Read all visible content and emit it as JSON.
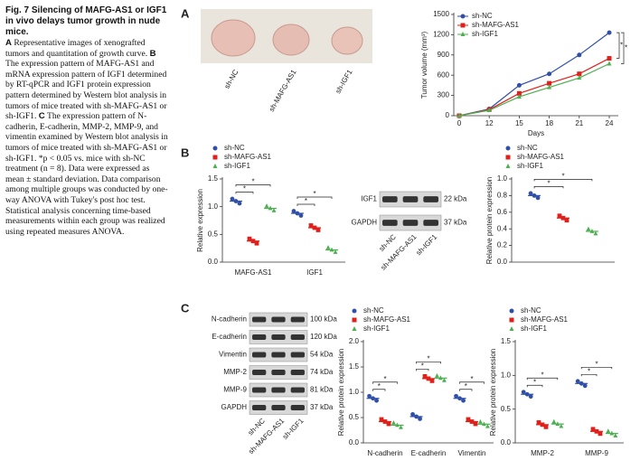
{
  "caption": {
    "title": "Fig. 7 Silencing of MAFG-AS1 or IGF1 in vivo delays tumor growth in nude mice.",
    "sections": [
      {
        "label": "A",
        "text": "Representative images of xenografted tumors and quantitation of growth curve."
      },
      {
        "label": "B",
        "text": "The expression pattern of MAFG-AS1 and mRNA expression pattern of IGF1 determined by RT-qPCR and IGF1 protein expression pattern determined by Western blot analysis in tumors of mice treated with sh-MAFG-AS1 or sh-IGF1."
      },
      {
        "label": "C",
        "text": "The expression pattern of N-cadherin, E-cadherin, MMP-2, MMP-9, and vimentin examined by Western blot analysis in tumors of mice treated with sh-MAFG-AS1 or sh-IGF1. *p < 0.05 vs. mice with sh-NC treatment (n = 8). Data were expressed as mean ± standard deviation. Data comparison among multiple groups was conducted by one-way ANOVA with Tukey's post hoc test. Statistical analysis concerning time-based measurements within each group was realized using repeated measures ANOVA."
      }
    ]
  },
  "panels": [
    "A",
    "B",
    "C"
  ],
  "photo_labels": [
    "sh-NC",
    "sh-MAFG-AS1",
    "sh-IGF1"
  ],
  "significance": "*",
  "blots": [
    {
      "rows": [
        {
          "protein": "IGF1",
          "size": "22 kDa"
        },
        {
          "protein": "GAPDH",
          "size": "37 kDa"
        }
      ],
      "lanes": [
        "sh-NC",
        "sh-MAFG-AS1",
        "sh-IGF1"
      ]
    },
    {
      "rows": [
        {
          "protein": "N-cadherin",
          "size": "100 kDa"
        },
        {
          "protein": "E-cadherin",
          "size": "120 kDa"
        },
        {
          "protein": "Vimentin",
          "size": "54 kDa"
        },
        {
          "protein": "MMP-2",
          "size": "74 kDa"
        },
        {
          "protein": "MMP-9",
          "size": "81 kDa"
        },
        {
          "protein": "GAPDH",
          "size": "37 kDa"
        }
      ],
      "lanes": [
        "sh-NC",
        "sh-MAFG-AS1",
        "sh-IGF1"
      ]
    }
  ],
  "chart_data": [
    {
      "type": "line",
      "y_label": "Tumor volume (mm³)",
      "x_label": "Days",
      "categories": [
        "0",
        "12",
        "15",
        "18",
        "21",
        "24"
      ],
      "series": [
        {
          "name": "sh-NC",
          "color": "#2f4fa8",
          "marker": "circle",
          "values": [
            0,
            100,
            450,
            620,
            900,
            1230
          ]
        },
        {
          "name": "sh-MAFG-AS1",
          "color": "#e0201b",
          "marker": "square",
          "values": [
            0,
            90,
            330,
            480,
            620,
            850
          ]
        },
        {
          "name": "sh-IGF1",
          "color": "#4caf50",
          "marker": "triangle",
          "values": [
            0,
            80,
            280,
            420,
            560,
            770
          ]
        }
      ],
      "ylim": [
        0,
        1500
      ],
      "yticks": [
        0,
        300,
        600,
        900,
        1200,
        1500
      ]
    },
    {
      "type": "dot",
      "y_label": "Relative expression",
      "categories": [
        "MAFG-AS1",
        "IGF1"
      ],
      "series": [
        {
          "name": "sh-NC",
          "color": "#2f4fa8",
          "marker": "circle",
          "values": [
            1.1,
            0.88
          ]
        },
        {
          "name": "sh-MAFG-AS1",
          "color": "#e0201b",
          "marker": "square",
          "values": [
            0.38,
            0.62
          ]
        },
        {
          "name": "sh-IGF1",
          "color": "#4caf50",
          "marker": "triangle",
          "values": [
            0.97,
            0.22
          ]
        }
      ],
      "ylim": [
        0,
        1.5
      ],
      "yticks": [
        {
          "value": 0,
          "label": "0.0"
        },
        0.5,
        {
          "value": 1,
          "label": "1.0"
        },
        1.5
      ]
    },
    {
      "type": "dot",
      "y_label": "Relative protein expression",
      "categories": [
        null
      ],
      "series": [
        {
          "name": "sh-NC",
          "color": "#2f4fa8",
          "marker": "circle",
          "values": [
            0.8
          ]
        },
        {
          "name": "sh-MAFG-AS1",
          "color": "#e0201b",
          "marker": "square",
          "values": [
            0.53
          ]
        },
        {
          "name": "sh-IGF1",
          "color": "#4caf50",
          "marker": "triangle",
          "values": [
            0.37
          ]
        }
      ],
      "ylim": [
        0,
        1
      ],
      "yticks": [
        {
          "value": 0,
          "label": "0.0"
        },
        0.2,
        0.4,
        0.6,
        0.8,
        {
          "value": 1,
          "label": "1.0"
        }
      ]
    },
    {
      "type": "dot",
      "y_label": "Relative protein expression",
      "categories": [
        "N-cadherin",
        "E-cadherin",
        "Vimentin"
      ],
      "series": [
        {
          "name": "sh-NC",
          "color": "#2f4fa8",
          "marker": "circle",
          "values": [
            0.88,
            0.52,
            0.88
          ]
        },
        {
          "name": "sh-MAFG-AS1",
          "color": "#e0201b",
          "marker": "square",
          "values": [
            0.42,
            1.27,
            0.42
          ]
        },
        {
          "name": "sh-IGF1",
          "color": "#4caf50",
          "marker": "triangle",
          "values": [
            0.35,
            1.28,
            0.37
          ]
        }
      ],
      "ylim": [
        0,
        2
      ],
      "yticks": [
        {
          "value": 0,
          "label": "0.0"
        },
        0.5,
        {
          "value": 1,
          "label": "1.0"
        },
        1.5,
        {
          "value": 2,
          "label": "2.0"
        }
      ]
    },
    {
      "type": "dot",
      "y_label": "Relative protein expression",
      "categories": [
        "MMP-2",
        "MMP-9"
      ],
      "series": [
        {
          "name": "sh-NC",
          "color": "#2f4fa8",
          "marker": "circle",
          "values": [
            0.72,
            0.88
          ]
        },
        {
          "name": "sh-MAFG-AS1",
          "color": "#e0201b",
          "marker": "square",
          "values": [
            0.27,
            0.17
          ]
        },
        {
          "name": "sh-IGF1",
          "color": "#4caf50",
          "marker": "triangle",
          "values": [
            0.28,
            0.14
          ]
        }
      ],
      "ylim": [
        0,
        1.5
      ],
      "yticks": [
        {
          "value": 0,
          "label": "0.0"
        },
        0.5,
        {
          "value": 1,
          "label": "1.0"
        },
        1.5
      ]
    }
  ]
}
